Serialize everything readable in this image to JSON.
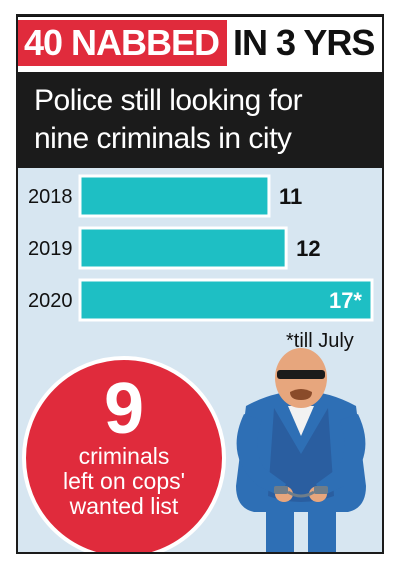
{
  "headline": {
    "red_text": "40 NABBED",
    "black_text": "IN 3 YRS"
  },
  "subhead": {
    "line1": "Police still looking for",
    "line2": "nine criminals in city"
  },
  "chart_data": {
    "type": "bar",
    "orientation": "horizontal",
    "categories": [
      "2018",
      "2019",
      "2020"
    ],
    "values": [
      11,
      12,
      17
    ],
    "value_labels": [
      "11",
      "12",
      "17*"
    ],
    "xlim": [
      0,
      17
    ],
    "grid": false,
    "annotation": "*till July",
    "colors": {
      "bar": "#1ebfc4",
      "bar_outline": "#ffffff"
    }
  },
  "callout": {
    "number": "9",
    "line1": "criminals",
    "line2": "left on cops'",
    "line3": "wanted list"
  },
  "illustration": {
    "icon": "handcuffed-criminal-icon"
  },
  "colors": {
    "accent_red": "#e02b3c",
    "dark": "#1b1b1b",
    "panel": "#d7e6f1",
    "teal": "#1ebfc4"
  }
}
